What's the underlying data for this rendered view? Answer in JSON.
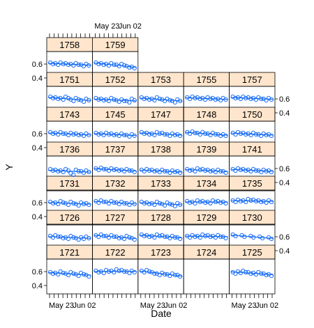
{
  "chart_data": {
    "type": "scatter",
    "layout": "lattice-trellis",
    "xlabel": "Date",
    "ylabel": "Y",
    "x_tick_labels": [
      "May 23",
      "Jun 02"
    ],
    "y_tick_labels": [
      "0.4",
      "0.6"
    ],
    "ylim": [
      0.28,
      0.78
    ],
    "xlim": [
      "May 13",
      "Jun 09"
    ],
    "colors": {
      "strip": "#ffe5cc",
      "points": "#1a6ef5",
      "frame": "#000000"
    },
    "panels": [
      {
        "label": "1721",
        "row": 0,
        "col": 0,
        "y": [
          0.58,
          0.57,
          0.59,
          0.56,
          0.58,
          0.55,
          0.57,
          0.54
        ]
      },
      {
        "label": "1722",
        "row": 0,
        "col": 1,
        "y": [
          0.6,
          0.59,
          0.61,
          0.6,
          0.62,
          0.61,
          0.59,
          0.6
        ]
      },
      {
        "label": "1723",
        "row": 0,
        "col": 2,
        "y": [
          0.6,
          0.61,
          0.58,
          0.56,
          0.57,
          0.55,
          0.56,
          0.54
        ]
      },
      {
        "label": "1724",
        "row": 0,
        "col": 3,
        "y": []
      },
      {
        "label": "1725",
        "row": 0,
        "col": 4,
        "y": [
          0.58,
          0.59,
          0.6,
          0.58,
          0.57,
          0.58,
          0.56,
          0.55
        ]
      },
      {
        "label": "1726",
        "row": 1,
        "col": 0,
        "y": [
          0.6,
          0.61,
          0.59,
          0.58,
          0.6,
          0.57,
          0.58,
          0.59
        ]
      },
      {
        "label": "1727",
        "row": 1,
        "col": 1,
        "y": [
          0.61,
          0.62,
          0.6,
          0.61,
          0.59,
          0.58,
          0.6,
          0.57
        ]
      },
      {
        "label": "1728",
        "row": 1,
        "col": 2,
        "y": [
          0.62,
          0.61,
          0.6,
          0.62,
          0.61,
          0.59,
          0.6,
          0.58
        ]
      },
      {
        "label": "1729",
        "row": 1,
        "col": 3,
        "y": [
          0.6,
          0.61,
          0.6,
          0.62,
          0.61,
          0.6,
          0.61,
          0.59
        ]
      },
      {
        "label": "1730",
        "row": 1,
        "col": 4,
        "y": [
          0.62,
          0.61,
          0.6,
          0.59,
          0.58
        ]
      },
      {
        "label": "1731",
        "row": 2,
        "col": 0,
        "y": [
          0.6,
          0.59,
          0.61,
          0.58,
          0.6,
          0.57,
          0.59,
          0.58
        ]
      },
      {
        "label": "1732",
        "row": 2,
        "col": 1,
        "y": [
          0.61,
          0.62,
          0.6,
          0.61,
          0.59,
          0.6,
          0.58,
          0.59
        ]
      },
      {
        "label": "1733",
        "row": 2,
        "col": 2,
        "y": [
          0.6,
          0.59,
          0.58,
          0.6,
          0.57,
          0.59,
          0.56,
          0.58
        ]
      },
      {
        "label": "1734",
        "row": 2,
        "col": 3,
        "y": [
          0.61,
          0.6,
          0.62,
          0.61,
          0.6,
          0.62,
          0.61,
          0.6
        ]
      },
      {
        "label": "1735",
        "row": 2,
        "col": 4,
        "y": [
          0.62,
          0.63,
          0.62,
          0.64,
          0.63,
          0.62,
          0.61,
          0.62
        ]
      },
      {
        "label": "1736",
        "row": 3,
        "col": 0,
        "y": [
          0.58,
          0.57,
          0.56,
          0.58,
          0.52,
          0.57,
          0.55,
          0.56
        ]
      },
      {
        "label": "1737",
        "row": 3,
        "col": 1,
        "y": [
          0.59,
          0.6,
          0.58,
          0.59,
          0.58,
          0.57,
          0.58,
          0.56
        ]
      },
      {
        "label": "1738",
        "row": 3,
        "col": 2,
        "y": [
          0.57,
          0.58,
          0.57,
          0.56,
          0.57,
          0.55,
          0.56,
          0.55
        ]
      },
      {
        "label": "1739",
        "row": 3,
        "col": 3,
        "y": [
          0.58,
          0.57,
          0.59,
          0.58,
          0.57,
          0.56,
          0.57,
          0.55
        ]
      },
      {
        "label": "1741",
        "row": 3,
        "col": 4,
        "y": [
          0.58,
          0.59,
          0.58,
          0.57,
          0.58,
          0.56,
          0.57,
          0.56
        ]
      },
      {
        "label": "1743",
        "row": 4,
        "col": 0,
        "y": [
          0.61,
          0.6,
          0.61,
          0.59,
          0.6,
          0.59,
          0.58,
          0.59
        ]
      },
      {
        "label": "1745",
        "row": 4,
        "col": 1,
        "y": [
          0.6,
          0.59,
          0.6,
          0.59,
          0.58,
          0.59,
          0.57,
          0.58
        ]
      },
      {
        "label": "1747",
        "row": 4,
        "col": 2,
        "y": [
          0.61,
          0.6,
          0.59,
          0.61,
          0.6,
          0.58,
          0.59,
          0.58
        ]
      },
      {
        "label": "1748",
        "row": 4,
        "col": 3,
        "y": [
          0.61,
          0.62,
          0.6,
          0.61,
          0.59,
          0.6,
          0.58,
          0.58
        ]
      },
      {
        "label": "1750",
        "row": 4,
        "col": 4,
        "y": [
          0.6,
          0.61,
          0.6,
          0.59,
          0.6,
          0.58,
          0.59,
          0.58
        ]
      },
      {
        "label": "1751",
        "row": 5,
        "col": 0,
        "y": [
          0.62,
          0.61,
          0.6,
          0.62,
          0.58,
          0.6,
          0.57,
          0.59
        ]
      },
      {
        "label": "1752",
        "row": 5,
        "col": 1,
        "y": [
          0.6,
          0.59,
          0.58,
          0.6,
          0.57,
          0.58,
          0.56,
          0.59
        ]
      },
      {
        "label": "1753",
        "row": 5,
        "col": 2,
        "y": [
          0.61,
          0.6,
          0.59,
          0.61,
          0.58,
          0.59,
          0.56,
          0.58
        ]
      },
      {
        "label": "1755",
        "row": 5,
        "col": 3,
        "y": [
          0.61,
          0.62,
          0.61,
          0.6,
          0.61,
          0.6,
          0.59,
          0.6
        ]
      },
      {
        "label": "1757",
        "row": 5,
        "col": 4,
        "y": [
          0.62,
          0.61,
          0.62,
          0.61,
          0.6,
          0.61,
          0.59,
          0.6
        ]
      },
      {
        "label": "1758",
        "row": 6,
        "col": 0,
        "y": [
          0.61,
          0.6,
          0.61,
          0.6,
          0.59,
          0.6,
          0.58,
          0.59
        ]
      },
      {
        "label": "1759",
        "row": 6,
        "col": 1,
        "y": [
          0.61,
          0.6,
          0.59,
          0.6,
          0.58,
          0.59,
          0.56,
          0.55
        ]
      }
    ]
  }
}
